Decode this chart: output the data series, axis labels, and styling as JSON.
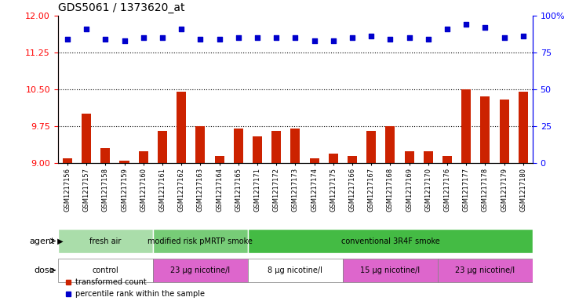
{
  "title": "GDS5061 / 1373620_at",
  "samples": [
    "GSM1217156",
    "GSM1217157",
    "GSM1217158",
    "GSM1217159",
    "GSM1217160",
    "GSM1217161",
    "GSM1217162",
    "GSM1217163",
    "GSM1217164",
    "GSM1217165",
    "GSM1217171",
    "GSM1217172",
    "GSM1217173",
    "GSM1217174",
    "GSM1217175",
    "GSM1217166",
    "GSM1217167",
    "GSM1217168",
    "GSM1217169",
    "GSM1217170",
    "GSM1217176",
    "GSM1217177",
    "GSM1217178",
    "GSM1217179",
    "GSM1217180"
  ],
  "bar_values": [
    9.1,
    10.0,
    9.3,
    9.05,
    9.25,
    9.65,
    10.45,
    9.75,
    9.15,
    9.7,
    9.55,
    9.65,
    9.7,
    9.1,
    9.2,
    9.15,
    9.65,
    9.75,
    9.25,
    9.25,
    9.15,
    10.5,
    10.35,
    10.3,
    10.45
  ],
  "dot_values": [
    84,
    91,
    84,
    83,
    85,
    85,
    91,
    84,
    84,
    85,
    85,
    85,
    85,
    83,
    83,
    85,
    86,
    84,
    85,
    84,
    91,
    94,
    92,
    85,
    86
  ],
  "bar_color": "#cc2200",
  "dot_color": "#0000cc",
  "ylim_left": [
    9.0,
    12.0
  ],
  "ylim_right": [
    0,
    100
  ],
  "yticks_left": [
    9.0,
    9.75,
    10.5,
    11.25,
    12.0
  ],
  "yticks_right": [
    0,
    25,
    50,
    75,
    100
  ],
  "hlines": [
    9.75,
    10.5,
    11.25
  ],
  "agent_groups": [
    {
      "label": "fresh air",
      "start": 0,
      "end": 5,
      "color": "#aaddaa"
    },
    {
      "label": "modified risk pMRTP smoke",
      "start": 5,
      "end": 10,
      "color": "#77cc77"
    },
    {
      "label": "conventional 3R4F smoke",
      "start": 10,
      "end": 25,
      "color": "#44bb44"
    }
  ],
  "dose_groups": [
    {
      "label": "control",
      "start": 0,
      "end": 5,
      "color": "#ffffff"
    },
    {
      "label": "23 μg nicotine/l",
      "start": 5,
      "end": 10,
      "color": "#dd66cc"
    },
    {
      "label": "8 μg nicotine/l",
      "start": 10,
      "end": 15,
      "color": "#ffffff"
    },
    {
      "label": "15 μg nicotine/l",
      "start": 15,
      "end": 20,
      "color": "#dd66cc"
    },
    {
      "label": "23 μg nicotine/l",
      "start": 20,
      "end": 25,
      "color": "#dd66cc"
    }
  ],
  "legend_items": [
    {
      "label": "transformed count",
      "color": "#cc2200",
      "marker": "s"
    },
    {
      "label": "percentile rank within the sample",
      "color": "#0000cc",
      "marker": "s"
    }
  ],
  "fig_width": 7.38,
  "fig_height": 3.93,
  "dpi": 100
}
